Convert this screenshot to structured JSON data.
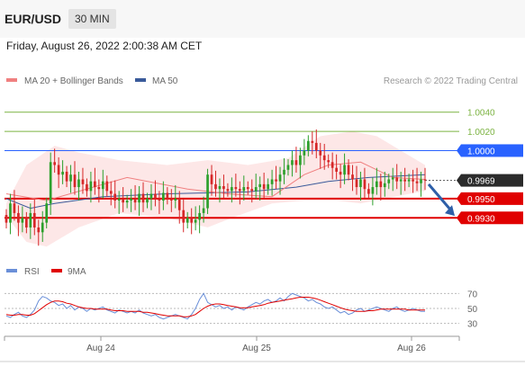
{
  "header": {
    "pair": "EUR/USD",
    "timeframe": "30 MIN",
    "datetime": "Friday, August 26, 2022 2:00:38 AM CET"
  },
  "legend": {
    "ma20_label": "MA 20 + Bollinger Bands",
    "ma50_label": "MA 50",
    "credit": "Research © 2022 Trading Central"
  },
  "rsi_legend": {
    "rsi_label": "RSI",
    "ma_label": "9MA"
  },
  "colors": {
    "ma20": "#f08080",
    "ma50": "#3a5a9a",
    "bull": "#2ca02c",
    "bear": "#d62728",
    "resistance": "#7cb342",
    "pivot": "#2962ff",
    "support": "#e00000",
    "band": "#fde4e4",
    "arrow": "#2e5fa8",
    "rsi": "#6a8fd8",
    "rsi_ma": "#e00000"
  },
  "chart_data": [
    {
      "type": "candlestick",
      "title": "EUR/USD 30 MIN",
      "x_ticks": [
        "Aug 24",
        "Aug 25",
        "Aug 26"
      ],
      "ylim": [
        0.989,
        1.0065
      ],
      "levels": [
        {
          "label": "1.0040",
          "value": 1.004,
          "kind": "resistance"
        },
        {
          "label": "1.0020",
          "value": 1.002,
          "kind": "resistance"
        },
        {
          "label": "1.0000",
          "value": 1.0,
          "kind": "pivot"
        },
        {
          "label": "0.9969",
          "value": 0.9969,
          "kind": "last-price"
        },
        {
          "label": "0.9950",
          "value": 0.995,
          "kind": "support"
        },
        {
          "label": "0.9930",
          "value": 0.993,
          "kind": "support"
        }
      ],
      "closes": [
        0.9925,
        0.9945,
        0.9935,
        0.9925,
        0.993,
        0.992,
        0.9935,
        0.992,
        0.9915,
        0.9925,
        0.9945,
        0.9988,
        0.9985,
        0.9975,
        0.9978,
        0.9968,
        0.9975,
        0.9962,
        0.997,
        0.9965,
        0.9958,
        0.9968,
        0.9962,
        0.996,
        0.9968,
        0.9958,
        0.9955,
        0.9948,
        0.995,
        0.9946,
        0.9948,
        0.995,
        0.9946,
        0.9955,
        0.9946,
        0.995,
        0.9955,
        0.995,
        0.9948,
        0.9956,
        0.995,
        0.9948,
        0.995,
        0.9938,
        0.9925,
        0.993,
        0.9925,
        0.9928,
        0.9935,
        0.994,
        0.9975,
        0.9965,
        0.996,
        0.9963,
        0.996,
        0.9958,
        0.9962,
        0.996,
        0.9958,
        0.9962,
        0.996,
        0.9958,
        0.9962,
        0.9965,
        0.996,
        0.9965,
        0.997,
        0.9968,
        0.9975,
        0.998,
        0.9985,
        0.999,
        0.9985,
        0.9995,
        1.0,
        1.001,
        1.0008,
        1.0,
        0.9995,
        0.999,
        0.9988,
        0.9982,
        0.9978,
        0.9975,
        0.9985,
        0.9975,
        0.997,
        0.9962,
        0.997,
        0.996,
        0.9955,
        0.9962,
        0.9968,
        0.9962,
        0.9966,
        0.997,
        0.9972,
        0.9968,
        0.997,
        0.9968,
        0.997,
        0.9968,
        0.9966,
        0.997,
        0.9969
      ],
      "ma20_points": [
        [
          0,
          0.9955
        ],
        [
          10,
          0.9948
        ],
        [
          30,
          0.9972
        ],
        [
          45,
          0.996
        ],
        [
          55,
          0.9955
        ],
        [
          66,
          0.9952
        ],
        [
          74,
          0.9975
        ],
        [
          80,
          0.9985
        ],
        [
          88,
          0.9988
        ],
        [
          96,
          0.9972
        ],
        [
          104,
          0.997
        ]
      ],
      "ma50_points": [
        [
          0,
          0.995
        ],
        [
          6,
          0.994
        ],
        [
          12,
          0.9945
        ],
        [
          24,
          0.9952
        ],
        [
          40,
          0.9955
        ],
        [
          60,
          0.9957
        ],
        [
          72,
          0.9962
        ],
        [
          80,
          0.9968
        ],
        [
          90,
          0.9972
        ],
        [
          104,
          0.9975
        ]
      ],
      "bollinger_upper": [
        [
          0,
          0.9945
        ],
        [
          5,
          0.9985
        ],
        [
          12,
          1.0005
        ],
        [
          18,
          0.9998
        ],
        [
          28,
          0.999
        ],
        [
          40,
          0.9985
        ],
        [
          50,
          0.999
        ],
        [
          60,
          0.9985
        ],
        [
          70,
          0.9992
        ],
        [
          78,
          1.0015
        ],
        [
          86,
          1.002
        ],
        [
          92,
          1.0015
        ],
        [
          98,
          1.0
        ],
        [
          104,
          0.9985
        ]
      ],
      "bollinger_lower": [
        [
          0,
          0.9932
        ],
        [
          5,
          0.9905
        ],
        [
          10,
          0.99
        ],
        [
          18,
          0.992
        ],
        [
          28,
          0.9935
        ],
        [
          40,
          0.993
        ],
        [
          50,
          0.992
        ],
        [
          56,
          0.993
        ],
        [
          66,
          0.9945
        ],
        [
          74,
          0.9948
        ],
        [
          82,
          0.9948
        ],
        [
          88,
          0.9945
        ],
        [
          94,
          0.995
        ],
        [
          104,
          0.9958
        ]
      ],
      "forecast_arrow": {
        "from": 0.9965,
        "to": 0.9932
      }
    },
    {
      "type": "line",
      "title": "RSI",
      "x_ticks": [
        "Aug 24",
        "Aug 25",
        "Aug 26"
      ],
      "y_ticks": [
        70,
        50,
        30
      ],
      "ylim": [
        20,
        80
      ],
      "series": [
        {
          "name": "RSI",
          "values": [
            40,
            38,
            42,
            45,
            40,
            38,
            42,
            48,
            60,
            66,
            64,
            60,
            58,
            54,
            56,
            50,
            54,
            48,
            52,
            50,
            46,
            50,
            48,
            50,
            52,
            48,
            46,
            44,
            48,
            46,
            44,
            46,
            44,
            48,
            44,
            42,
            40,
            42,
            38,
            36,
            38,
            40,
            42,
            40,
            38,
            36,
            42,
            50,
            62,
            70,
            58,
            55,
            52,
            54,
            50,
            52,
            48,
            52,
            50,
            48,
            52,
            55,
            58,
            56,
            60,
            62,
            58,
            60,
            64,
            60,
            66,
            70,
            68,
            66,
            64,
            60,
            62,
            58,
            56,
            52,
            50,
            52,
            48,
            44,
            46,
            42,
            44,
            48,
            50,
            46,
            48,
            50,
            52,
            50,
            48,
            46,
            50,
            52,
            48,
            46,
            48,
            50,
            48,
            46,
            46
          ]
        },
        {
          "name": "9MA",
          "values": [
            42,
            41,
            41,
            42,
            42,
            41,
            41,
            43,
            47,
            51,
            55,
            58,
            60,
            60,
            59,
            57,
            56,
            54,
            52,
            51,
            50,
            50,
            49,
            49,
            49,
            49,
            48,
            47,
            47,
            47,
            46,
            46,
            46,
            46,
            45,
            45,
            44,
            43,
            42,
            41,
            40,
            40,
            40,
            40,
            39,
            39,
            40,
            42,
            46,
            50,
            53,
            55,
            56,
            56,
            55,
            54,
            53,
            52,
            51,
            51,
            51,
            52,
            53,
            54,
            55,
            57,
            58,
            59,
            60,
            61,
            62,
            63,
            64,
            65,
            65,
            65,
            64,
            63,
            61,
            59,
            57,
            55,
            53,
            51,
            49,
            48,
            47,
            46,
            46,
            46,
            47,
            47,
            48,
            49,
            49,
            49,
            49,
            49,
            49,
            49,
            48,
            48,
            48,
            48,
            48
          ]
        }
      ]
    }
  ]
}
